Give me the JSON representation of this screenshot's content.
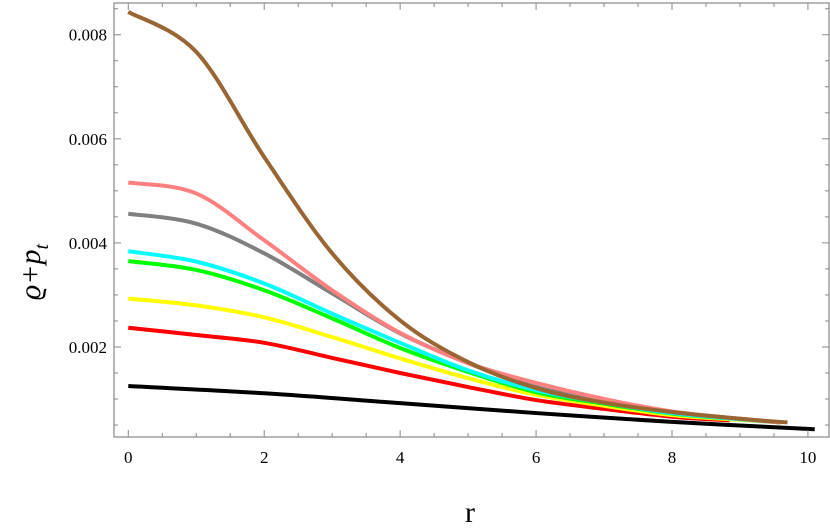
{
  "chart_data": {
    "type": "line",
    "title": "",
    "xlabel": "r",
    "ylabel": "ϱ+p_t",
    "ylabel_parts": {
      "main": "ϱ+p",
      "sub": "t"
    },
    "xlim": [
      -0.21,
      10.31
    ],
    "ylim": [
      0.00027,
      0.00861
    ],
    "x_ticks": [
      0,
      2,
      4,
      6,
      8,
      10
    ],
    "x_tick_labels": [
      "0",
      "2",
      "4",
      "6",
      "8",
      "10"
    ],
    "y_ticks": [
      0.002,
      0.004,
      0.006,
      0.008
    ],
    "y_tick_labels": [
      "0.002",
      "0.004",
      "0.006",
      "0.008"
    ],
    "x_minor_step": 0.5,
    "y_minor_step": 0.0005,
    "grid": false,
    "legend": "none",
    "series": [
      {
        "color": "#996633",
        "x": [
          0,
          1,
          2,
          3,
          4,
          5,
          6,
          7,
          8,
          9,
          9.7
        ],
        "y": [
          0.00844,
          0.00767,
          0.00565,
          0.0038,
          0.00251,
          0.00171,
          0.00121,
          0.00093,
          0.00075,
          0.00062,
          0.00055
        ]
      },
      {
        "color": "#ff8080",
        "x": [
          0,
          1,
          2,
          3,
          4,
          5,
          6,
          7,
          8,
          9,
          9.6
        ],
        "y": [
          0.00516,
          0.00495,
          0.00405,
          0.00309,
          0.00227,
          0.00169,
          0.00131,
          0.001,
          0.00076,
          0.00062,
          0.00055
        ]
      },
      {
        "color": "#808080",
        "x": [
          0,
          1,
          2,
          3,
          4,
          5,
          6,
          7,
          8,
          9,
          9.6
        ],
        "y": [
          0.00456,
          0.00437,
          0.0038,
          0.00303,
          0.00226,
          0.00169,
          0.00123,
          0.00097,
          0.00075,
          0.00062,
          0.00055
        ]
      },
      {
        "color": "#00ffff",
        "x": [
          0,
          1,
          2,
          3,
          4,
          5,
          6,
          7,
          8,
          9,
          9.6
        ],
        "y": [
          0.00384,
          0.00364,
          0.00322,
          0.00264,
          0.00208,
          0.00155,
          0.00117,
          0.00093,
          0.00073,
          0.00061,
          0.00055
        ]
      },
      {
        "color": "#00ff00",
        "x": [
          0,
          1,
          2,
          3,
          4,
          5,
          6,
          7,
          8,
          9,
          9.6
        ],
        "y": [
          0.00365,
          0.00348,
          0.00309,
          0.00255,
          0.00198,
          0.00152,
          0.00113,
          0.00091,
          0.00072,
          0.00061,
          0.00055
        ]
      },
      {
        "color": "#ffff00",
        "x": [
          0,
          1,
          2,
          3,
          4,
          5,
          6,
          7,
          8,
          9,
          9.6
        ],
        "y": [
          0.00293,
          0.0028,
          0.00257,
          0.00219,
          0.00178,
          0.0014,
          0.00108,
          0.00087,
          0.00069,
          0.0006,
          0.00055
        ]
      },
      {
        "color": "#ff0000",
        "x": [
          0,
          1,
          2,
          3,
          4,
          5,
          6,
          7,
          8,
          8.85
        ],
        "y": [
          0.00237,
          0.00223,
          0.00208,
          0.00179,
          0.0015,
          0.00123,
          0.00098,
          0.00081,
          0.00066,
          0.00059
        ]
      },
      {
        "color": "#000000",
        "x": [
          0,
          2,
          4,
          6,
          8,
          10.1
        ],
        "y": [
          0.00125,
          0.00111,
          0.00092,
          0.00073,
          0.00056,
          0.00042
        ]
      }
    ]
  }
}
